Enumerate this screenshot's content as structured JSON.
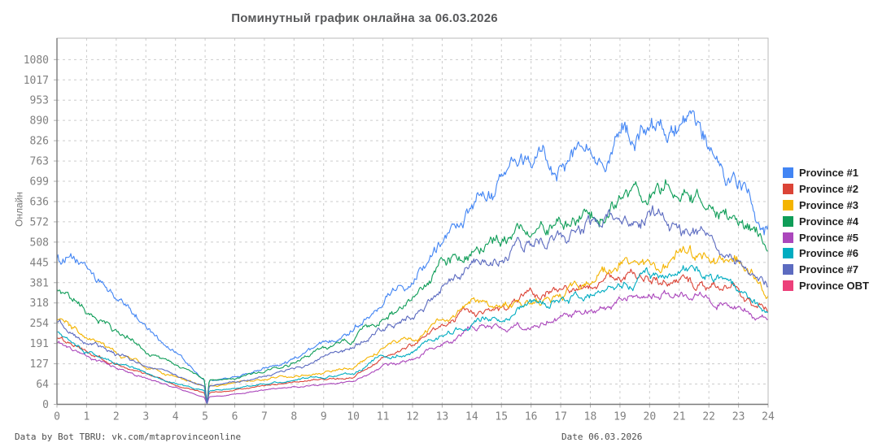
{
  "title": "Поминутный график онлайна за 06.03.2026",
  "y_axis_label": "Онлайн",
  "footer": {
    "left": "Data by Bot TBRU: vk.com/mtaprovinceonline",
    "right": "Date 06.03.2026"
  },
  "chart_data": {
    "type": "line",
    "title": "Поминутный график онлайна за 06.03.2026",
    "xlabel": "",
    "ylabel": "Онлайн",
    "xlim": [
      0,
      24
    ],
    "ylim": [
      0,
      1147
    ],
    "grid": true,
    "legend_position": "right",
    "x_ticks": [
      0,
      1,
      2,
      3,
      4,
      5,
      6,
      7,
      8,
      9,
      10,
      11,
      12,
      13,
      14,
      15,
      16,
      17,
      18,
      19,
      20,
      21,
      22,
      23,
      24
    ],
    "y_ticks": [
      0,
      64,
      127,
      191,
      254,
      318,
      381,
      445,
      508,
      572,
      636,
      699,
      763,
      826,
      890,
      953,
      1017,
      1080
    ],
    "restart_dip_hour": 5.06,
    "x": [
      0,
      1,
      2,
      3,
      4,
      5,
      6,
      7,
      8,
      9,
      10,
      11,
      12,
      13,
      14,
      15,
      16,
      17,
      18,
      19,
      20,
      21,
      22,
      23,
      24
    ],
    "series": [
      {
        "name": "Province #1",
        "color": "#4285f4",
        "values": [
          465,
          425,
          333,
          248,
          163,
          70,
          85,
          110,
          145,
          185,
          240,
          333,
          400,
          528,
          605,
          690,
          760,
          750,
          817,
          846,
          834,
          840,
          795,
          689,
          565
        ]
      },
      {
        "name": "Province #2",
        "color": "#db4437",
        "values": [
          210,
          160,
          120,
          90,
          60,
          35,
          45,
          58,
          68,
          78,
          87,
          142,
          180,
          261,
          295,
          282,
          350,
          360,
          367,
          409,
          393,
          388,
          367,
          358,
          299
        ]
      },
      {
        "name": "Province #3",
        "color": "#f4b400",
        "values": [
          260,
          205,
          158,
          122,
          88,
          55,
          63,
          80,
          92,
          100,
          117,
          180,
          197,
          265,
          316,
          320,
          316,
          345,
          384,
          439,
          426,
          469,
          477,
          439,
          346
        ]
      },
      {
        "name": "Province #4",
        "color": "#0f9d58",
        "values": [
          360,
          290,
          225,
          170,
          120,
          75,
          80,
          105,
          135,
          170,
          202,
          266,
          325,
          426,
          485,
          511,
          554,
          560,
          588,
          639,
          668,
          700,
          647,
          579,
          505
        ]
      },
      {
        "name": "Province #5",
        "color": "#ab47bc",
        "values": [
          195,
          150,
          110,
          80,
          50,
          22,
          32,
          45,
          55,
          62,
          70,
          121,
          138,
          201,
          240,
          244,
          248,
          278,
          291,
          316,
          354,
          350,
          325,
          299,
          261
        ]
      },
      {
        "name": "Province #6",
        "color": "#00acc1",
        "values": [
          230,
          175,
          130,
          98,
          68,
          40,
          50,
          64,
          76,
          88,
          95,
          151,
          167,
          223,
          265,
          274,
          316,
          320,
          358,
          375,
          401,
          397,
          401,
          367,
          291
        ]
      },
      {
        "name": "Province #7",
        "color": "#5c6bc0",
        "values": [
          255,
          205,
          158,
          120,
          85,
          55,
          68,
          88,
          112,
          145,
          172,
          244,
          274,
          371,
          443,
          456,
          494,
          540,
          560,
          613,
          605,
          571,
          520,
          439,
          371
        ]
      },
      {
        "name": "Province OBT",
        "color": "#ec407a",
        "values": [
          0,
          0,
          0,
          0,
          0,
          0,
          0,
          0,
          0,
          0,
          0,
          0,
          0,
          0,
          0,
          0,
          0,
          0,
          0,
          0,
          0,
          0,
          0,
          0,
          0
        ]
      }
    ]
  }
}
